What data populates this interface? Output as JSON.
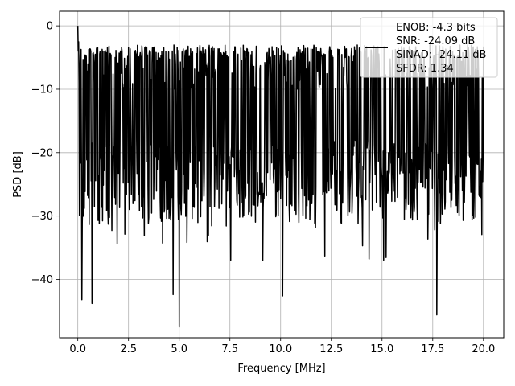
{
  "chart_data": {
    "type": "line",
    "title": "",
    "xlabel": "Frequency [MHz]",
    "ylabel": "PSD [dB]",
    "xlim": [
      -0.9,
      21.0
    ],
    "ylim": [
      -49.2,
      2.3
    ],
    "xticks": [
      0.0,
      2.5,
      5.0,
      7.5,
      10.0,
      12.5,
      15.0,
      17.5,
      20.0
    ],
    "xtick_labels": [
      "0.0",
      "2.5",
      "5.0",
      "7.5",
      "10.0",
      "12.5",
      "15.0",
      "17.5",
      "20.0"
    ],
    "yticks": [
      0,
      -10,
      -20,
      -30,
      -40
    ],
    "ytick_labels": [
      "0",
      "−10",
      "−20",
      "−30",
      "−40"
    ],
    "grid": true,
    "legend_position": "top-right",
    "legend": [
      "ENOB: -4.3 bits",
      "SNR: -24.09 dB",
      "SINAD: -24.11 dB",
      "SFDR: 1.34"
    ],
    "series": [
      {
        "color": "#000000",
        "x_range": [
          0.0,
          20.0
        ],
        "num_points": 1001,
        "baseline_db": -18,
        "upper_envelope_db": -6,
        "lower_envelope_db": -30,
        "peak": {
          "x": 0.0,
          "y": 0.0
        },
        "notable_dips": [
          {
            "x": 0.2,
            "y": -43.2
          },
          {
            "x": 0.7,
            "y": -43.8
          },
          {
            "x": 4.7,
            "y": -42.4
          },
          {
            "x": 5.0,
            "y": -47.5
          },
          {
            "x": 10.1,
            "y": -42.6
          },
          {
            "x": 17.7,
            "y": -45.6
          }
        ]
      }
    ]
  }
}
